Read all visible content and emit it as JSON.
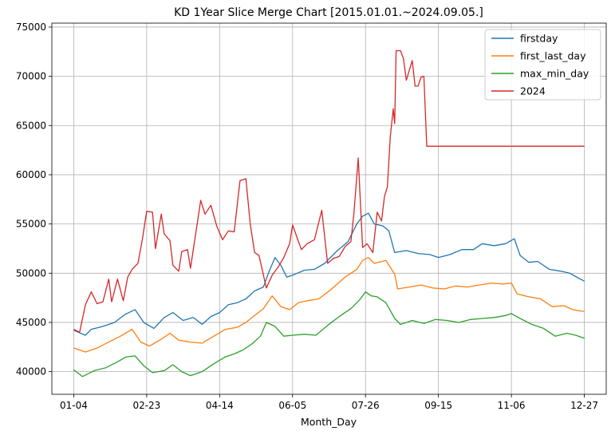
{
  "chart_data": {
    "type": "line",
    "title": "KD 1Year Slice Merge Chart [2015.01.01.~2024.09.05.]",
    "xlabel": "Month_Day",
    "ylabel": "",
    "x_ticks": [
      "01-04",
      "02-23",
      "04-14",
      "06-05",
      "07-26",
      "09-15",
      "11-06",
      "12-27"
    ],
    "x_tick_index": [
      0,
      50,
      100,
      150,
      200,
      250,
      300,
      350
    ],
    "x_range": [
      -15,
      365
    ],
    "ylim": [
      37700,
      75400
    ],
    "y_ticks": [
      40000,
      45000,
      50000,
      55000,
      60000,
      65000,
      70000,
      75000
    ],
    "grid": true,
    "legend_position": "top-right",
    "series": [
      {
        "name": "firstday",
        "color": "#1f77b4",
        "points": [
          [
            0,
            44200
          ],
          [
            8,
            43700
          ],
          [
            12,
            44300
          ],
          [
            20,
            44600
          ],
          [
            28,
            45000
          ],
          [
            35,
            45800
          ],
          [
            42,
            46300
          ],
          [
            48,
            45000
          ],
          [
            55,
            44400
          ],
          [
            62,
            45500
          ],
          [
            68,
            46000
          ],
          [
            75,
            45200
          ],
          [
            82,
            45500
          ],
          [
            88,
            44800
          ],
          [
            94,
            45600
          ],
          [
            100,
            46000
          ],
          [
            106,
            46800
          ],
          [
            112,
            47000
          ],
          [
            118,
            47400
          ],
          [
            124,
            48200
          ],
          [
            130,
            48600
          ],
          [
            134,
            50200
          ],
          [
            138,
            51600
          ],
          [
            142,
            50800
          ],
          [
            146,
            49600
          ],
          [
            150,
            49800
          ],
          [
            158,
            50300
          ],
          [
            165,
            50400
          ],
          [
            172,
            51000
          ],
          [
            180,
            52200
          ],
          [
            188,
            53200
          ],
          [
            194,
            55000
          ],
          [
            198,
            55800
          ],
          [
            202,
            56100
          ],
          [
            206,
            55000
          ],
          [
            212,
            54800
          ],
          [
            216,
            54300
          ],
          [
            220,
            52100
          ],
          [
            228,
            52300
          ],
          [
            236,
            52000
          ],
          [
            244,
            51900
          ],
          [
            250,
            51600
          ],
          [
            258,
            51900
          ],
          [
            266,
            52400
          ],
          [
            274,
            52400
          ],
          [
            280,
            53000
          ],
          [
            288,
            52800
          ],
          [
            296,
            53000
          ],
          [
            302,
            53500
          ],
          [
            306,
            51800
          ],
          [
            312,
            51100
          ],
          [
            318,
            51200
          ],
          [
            326,
            50400
          ],
          [
            334,
            50200
          ],
          [
            340,
            50000
          ],
          [
            346,
            49500
          ],
          [
            350,
            49200
          ]
        ]
      },
      {
        "name": "first_last_day",
        "color": "#ff7f0e",
        "points": [
          [
            0,
            42400
          ],
          [
            8,
            42000
          ],
          [
            16,
            42400
          ],
          [
            24,
            43000
          ],
          [
            32,
            43600
          ],
          [
            40,
            44300
          ],
          [
            46,
            43000
          ],
          [
            52,
            42600
          ],
          [
            60,
            43300
          ],
          [
            66,
            43900
          ],
          [
            72,
            43200
          ],
          [
            80,
            43000
          ],
          [
            88,
            42900
          ],
          [
            96,
            43600
          ],
          [
            104,
            44300
          ],
          [
            112,
            44500
          ],
          [
            118,
            45000
          ],
          [
            124,
            45700
          ],
          [
            130,
            46400
          ],
          [
            136,
            47700
          ],
          [
            142,
            46600
          ],
          [
            148,
            46300
          ],
          [
            154,
            47000
          ],
          [
            160,
            47200
          ],
          [
            168,
            47400
          ],
          [
            176,
            48300
          ],
          [
            186,
            49600
          ],
          [
            194,
            50400
          ],
          [
            198,
            51300
          ],
          [
            202,
            51600
          ],
          [
            206,
            51000
          ],
          [
            214,
            51300
          ],
          [
            220,
            49900
          ],
          [
            222,
            48400
          ],
          [
            230,
            48600
          ],
          [
            238,
            48800
          ],
          [
            246,
            48500
          ],
          [
            254,
            48400
          ],
          [
            262,
            48700
          ],
          [
            270,
            48600
          ],
          [
            278,
            48800
          ],
          [
            286,
            49000
          ],
          [
            294,
            48900
          ],
          [
            300,
            49000
          ],
          [
            304,
            47900
          ],
          [
            312,
            47600
          ],
          [
            320,
            47400
          ],
          [
            328,
            46600
          ],
          [
            336,
            46700
          ],
          [
            342,
            46300
          ],
          [
            350,
            46100
          ]
        ]
      },
      {
        "name": "max_min_day",
        "color": "#2ca02c",
        "points": [
          [
            0,
            40200
          ],
          [
            6,
            39500
          ],
          [
            14,
            40100
          ],
          [
            22,
            40400
          ],
          [
            30,
            41000
          ],
          [
            36,
            41500
          ],
          [
            42,
            41600
          ],
          [
            48,
            40600
          ],
          [
            54,
            39900
          ],
          [
            62,
            40100
          ],
          [
            68,
            40700
          ],
          [
            74,
            40000
          ],
          [
            80,
            39600
          ],
          [
            88,
            40000
          ],
          [
            96,
            40800
          ],
          [
            104,
            41500
          ],
          [
            110,
            41800
          ],
          [
            116,
            42200
          ],
          [
            122,
            42800
          ],
          [
            128,
            43600
          ],
          [
            132,
            45000
          ],
          [
            138,
            44600
          ],
          [
            144,
            43600
          ],
          [
            150,
            43700
          ],
          [
            158,
            43800
          ],
          [
            166,
            43700
          ],
          [
            174,
            44700
          ],
          [
            182,
            45600
          ],
          [
            190,
            46400
          ],
          [
            196,
            47300
          ],
          [
            200,
            48100
          ],
          [
            204,
            47700
          ],
          [
            208,
            47600
          ],
          [
            214,
            47000
          ],
          [
            220,
            45400
          ],
          [
            224,
            44800
          ],
          [
            232,
            45200
          ],
          [
            240,
            44900
          ],
          [
            248,
            45300
          ],
          [
            256,
            45200
          ],
          [
            264,
            45000
          ],
          [
            272,
            45300
          ],
          [
            280,
            45400
          ],
          [
            288,
            45500
          ],
          [
            296,
            45700
          ],
          [
            300,
            45900
          ],
          [
            306,
            45400
          ],
          [
            314,
            44800
          ],
          [
            322,
            44400
          ],
          [
            330,
            43600
          ],
          [
            338,
            43900
          ],
          [
            344,
            43700
          ],
          [
            350,
            43400
          ]
        ]
      },
      {
        "name": "2024",
        "color": "#d62728",
        "points": [
          [
            0,
            44300
          ],
          [
            4,
            44000
          ],
          [
            8,
            46800
          ],
          [
            12,
            48100
          ],
          [
            16,
            46900
          ],
          [
            20,
            47100
          ],
          [
            24,
            49400
          ],
          [
            26,
            47100
          ],
          [
            30,
            49400
          ],
          [
            34,
            47200
          ],
          [
            37,
            49600
          ],
          [
            40,
            50400
          ],
          [
            44,
            51000
          ],
          [
            47,
            53400
          ],
          [
            50,
            56300
          ],
          [
            54,
            56200
          ],
          [
            56,
            52500
          ],
          [
            60,
            56000
          ],
          [
            62,
            54000
          ],
          [
            66,
            53300
          ],
          [
            68,
            50800
          ],
          [
            72,
            50200
          ],
          [
            74,
            52200
          ],
          [
            78,
            52400
          ],
          [
            80,
            50500
          ],
          [
            83,
            53400
          ],
          [
            87,
            57400
          ],
          [
            90,
            56000
          ],
          [
            94,
            56900
          ],
          [
            98,
            54800
          ],
          [
            102,
            53400
          ],
          [
            106,
            54300
          ],
          [
            110,
            54200
          ],
          [
            114,
            59400
          ],
          [
            118,
            59600
          ],
          [
            121,
            55000
          ],
          [
            124,
            52100
          ],
          [
            127,
            51800
          ],
          [
            132,
            48500
          ],
          [
            136,
            49800
          ],
          [
            140,
            50600
          ],
          [
            144,
            51600
          ],
          [
            148,
            53000
          ],
          [
            150,
            54900
          ],
          [
            156,
            52400
          ],
          [
            160,
            53000
          ],
          [
            165,
            53400
          ],
          [
            170,
            56400
          ],
          [
            174,
            51000
          ],
          [
            178,
            51500
          ],
          [
            182,
            51700
          ],
          [
            186,
            52700
          ],
          [
            190,
            53200
          ],
          [
            192,
            56000
          ],
          [
            195,
            61700
          ],
          [
            198,
            52600
          ],
          [
            201,
            53000
          ],
          [
            205,
            52100
          ],
          [
            208,
            56200
          ],
          [
            211,
            55300
          ],
          [
            213,
            57800
          ],
          [
            215,
            58800
          ],
          [
            217,
            63900
          ],
          [
            219,
            66700
          ],
          [
            220,
            65200
          ],
          [
            221,
            72600
          ],
          [
            224,
            72600
          ],
          [
            226,
            71800
          ],
          [
            228,
            69600
          ],
          [
            232,
            71600
          ],
          [
            234,
            69000
          ],
          [
            236,
            69000
          ],
          [
            238,
            69900
          ],
          [
            240,
            70000
          ],
          [
            242,
            62900
          ],
          [
            350,
            62900
          ]
        ]
      }
    ]
  }
}
